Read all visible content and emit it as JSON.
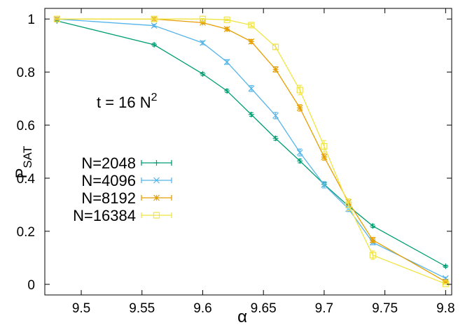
{
  "chart_data": {
    "type": "line",
    "title": "",
    "xlabel": "α",
    "ylabel": "P",
    "ylabel_sub": "SAT",
    "annotation": {
      "text": "t = 16 N",
      "sup": "2"
    },
    "xlim": [
      9.47,
      9.805
    ],
    "ylim": [
      -0.04,
      1.04
    ],
    "x_ticks": [
      {
        "v": 9.5,
        "label": "9.5"
      },
      {
        "v": 9.55,
        "label": "9.55"
      },
      {
        "v": 9.6,
        "label": "9.6"
      },
      {
        "v": 9.65,
        "label": "9.65"
      },
      {
        "v": 9.7,
        "label": "9.7"
      },
      {
        "v": 9.75,
        "label": "9.75"
      },
      {
        "v": 9.8,
        "label": "9.8"
      }
    ],
    "y_ticks": [
      {
        "v": 0,
        "label": "0"
      },
      {
        "v": 0.2,
        "label": "0.2"
      },
      {
        "v": 0.4,
        "label": "0.4"
      },
      {
        "v": 0.6,
        "label": "0.6"
      },
      {
        "v": 0.8,
        "label": "0.8"
      },
      {
        "v": 1,
        "label": "1"
      }
    ],
    "grid": false,
    "legend_position": "center-left",
    "series": [
      {
        "name": "N=2048",
        "color": "#009e73",
        "marker": "plus",
        "x": [
          9.48,
          9.56,
          9.6,
          9.62,
          9.64,
          9.66,
          9.68,
          9.7,
          9.72,
          9.74,
          9.8
        ],
        "y": [
          0.993,
          0.903,
          0.793,
          0.729,
          0.64,
          0.55,
          0.465,
          0.377,
          0.295,
          0.22,
          0.068
        ],
        "err": [
          0.004,
          0.005,
          0.006,
          0.006,
          0.007,
          0.007,
          0.007,
          0.007,
          0.007,
          0.006,
          0.004
        ]
      },
      {
        "name": "N=4096",
        "color": "#56b4e9",
        "marker": "cross",
        "x": [
          9.48,
          9.56,
          9.6,
          9.62,
          9.64,
          9.66,
          9.68,
          9.7,
          9.72,
          9.74,
          9.8
        ],
        "y": [
          1.0,
          0.975,
          0.91,
          0.838,
          0.738,
          0.636,
          0.497,
          0.375,
          0.285,
          0.158,
          0.023
        ],
        "err": [
          0.002,
          0.005,
          0.007,
          0.009,
          0.011,
          0.012,
          0.013,
          0.012,
          0.011,
          0.009,
          0.004
        ]
      },
      {
        "name": "N=8192",
        "color": "#e69f00",
        "marker": "star",
        "x": [
          9.48,
          9.56,
          9.6,
          9.62,
          9.64,
          9.66,
          9.68,
          9.7,
          9.72,
          9.74,
          9.8
        ],
        "y": [
          1.0,
          1.0,
          0.986,
          0.962,
          0.915,
          0.81,
          0.665,
          0.48,
          0.31,
          0.167,
          0.01
        ],
        "err": [
          0.001,
          0.001,
          0.004,
          0.006,
          0.008,
          0.01,
          0.012,
          0.012,
          0.012,
          0.01,
          0.003
        ]
      },
      {
        "name": "N=16384",
        "color": "#f0e442",
        "marker": "square",
        "x": [
          9.48,
          9.56,
          9.6,
          9.62,
          9.64,
          9.66,
          9.68,
          9.7,
          9.72,
          9.74,
          9.8
        ],
        "y": [
          1.0,
          1.0,
          1.0,
          0.997,
          0.977,
          0.895,
          0.732,
          0.52,
          0.3,
          0.11,
          0.002
        ],
        "err": [
          0.001,
          0.001,
          0.002,
          0.003,
          0.006,
          0.01,
          0.018,
          0.022,
          0.022,
          0.016,
          0.002
        ]
      }
    ]
  }
}
